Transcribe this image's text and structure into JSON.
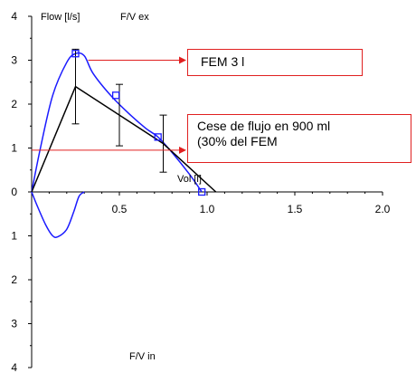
{
  "chart_data": {
    "type": "line",
    "y_axis_label": "Flow [l/s]",
    "x_axis_label": "Vol [l]",
    "label_expiration": "F/V ex",
    "label_inspiration": "F/V in",
    "x_ticks": [
      "0",
      "0.5",
      "1.0",
      "1.5",
      "2.0"
    ],
    "y_ticks_upper": [
      "4",
      "3",
      "2",
      "1",
      "0"
    ],
    "y_ticks_lower": [
      "1",
      "2",
      "3",
      "4"
    ],
    "xlim": [
      0,
      2.0
    ],
    "ylim": [
      -4,
      4
    ],
    "colors": {
      "measured": "#1a1aff",
      "predicted": "#000000",
      "annotation": "#e02020"
    },
    "series": [
      {
        "role": "measured-expiratory",
        "x": [
          0.0,
          0.05,
          0.12,
          0.2,
          0.25,
          0.3,
          0.35,
          0.45,
          0.55,
          0.65,
          0.72,
          0.8,
          0.9,
          0.97
        ],
        "y": [
          0.0,
          1.0,
          2.2,
          2.95,
          3.15,
          3.1,
          2.7,
          2.2,
          1.8,
          1.45,
          1.25,
          0.9,
          0.4,
          0.0
        ]
      },
      {
        "role": "measured-inspiratory",
        "x": [
          0.0,
          0.03,
          0.08,
          0.12,
          0.15,
          0.2,
          0.24,
          0.27,
          0.3
        ],
        "y": [
          0.0,
          -0.3,
          -0.75,
          -1.0,
          -1.02,
          -0.85,
          -0.45,
          -0.1,
          0.0
        ]
      },
      {
        "role": "predicted",
        "x": [
          0.0,
          0.25,
          0.5,
          0.75,
          1.05
        ],
        "y": [
          0.0,
          2.4,
          1.75,
          1.1,
          0.0
        ]
      }
    ],
    "measured_markers": {
      "x": [
        0.25,
        0.48,
        0.72,
        0.97
      ],
      "y": [
        3.15,
        2.2,
        1.25,
        0.0
      ]
    },
    "predicted_error_bars": [
      {
        "x": 0.25,
        "y": 2.4,
        "low": 1.55,
        "high": 3.25
      },
      {
        "x": 0.5,
        "y": 1.75,
        "low": 1.05,
        "high": 2.45
      },
      {
        "x": 0.75,
        "y": 1.1,
        "low": 0.45,
        "high": 1.75
      }
    ],
    "annotations": [
      {
        "text": "FEM 3 l",
        "from": {
          "x": 0.25,
          "y": 3.0
        }
      },
      {
        "text": "Cese de flujo en 900 ml",
        "text2": "(30% del FEM",
        "from": {
          "x": 0.0,
          "y": 0.95
        }
      }
    ]
  }
}
